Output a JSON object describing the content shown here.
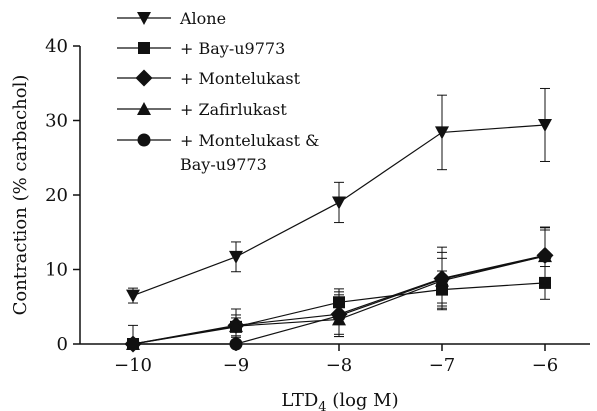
{
  "chart_data": {
    "type": "line",
    "xlabel": "LTD",
    "xlabel_subscript": "4",
    "xlabel_suffix": " (log M)",
    "ylabel": "Contraction (% carbachol)",
    "x": [
      -10,
      -9,
      -8,
      -7,
      -6
    ],
    "xticks": [
      "−10",
      "−9",
      "−8",
      "−7",
      "−6"
    ],
    "xlim": [
      -10.4,
      -5.7
    ],
    "ylim": [
      0,
      40
    ],
    "yticks": [
      "0",
      "10",
      "20",
      "30",
      "40"
    ],
    "grid": false,
    "legend_placement": "top-left",
    "series": [
      {
        "name": "Alone",
        "marker": "triangle-down",
        "values": [
          6.5,
          11.7,
          19.0,
          28.4,
          29.4
        ],
        "errors": [
          1.0,
          2.0,
          2.7,
          5.0,
          4.9
        ]
      },
      {
        "name": "+ Bay-u9773",
        "marker": "square",
        "values": [
          0.0,
          2.3,
          5.6,
          7.3,
          8.2
        ],
        "errors": [
          0.5,
          1.2,
          1.8,
          2.5,
          2.2
        ]
      },
      {
        "name": "+ Montelukast",
        "marker": "diamond",
        "values": [
          0.0,
          2.5,
          4.0,
          8.8,
          11.9
        ],
        "errors": [
          2.5,
          2.2,
          3.0,
          4.2,
          3.8
        ]
      },
      {
        "name": "+ Zafirlukast",
        "marker": "triangle-up",
        "values": [
          0.0,
          2.4,
          3.3,
          8.5,
          11.8
        ],
        "errors": [
          0.5,
          1.5,
          2.0,
          3.0,
          3.5
        ]
      },
      {
        "name": "+ Montelukast & Bay-u9773",
        "marker": "circle",
        "values": [
          0.0,
          0.0,
          3.8,
          8.7,
          11.8
        ],
        "errors": [
          0.5,
          0.5,
          2.8,
          3.6,
          3.8
        ]
      }
    ]
  }
}
